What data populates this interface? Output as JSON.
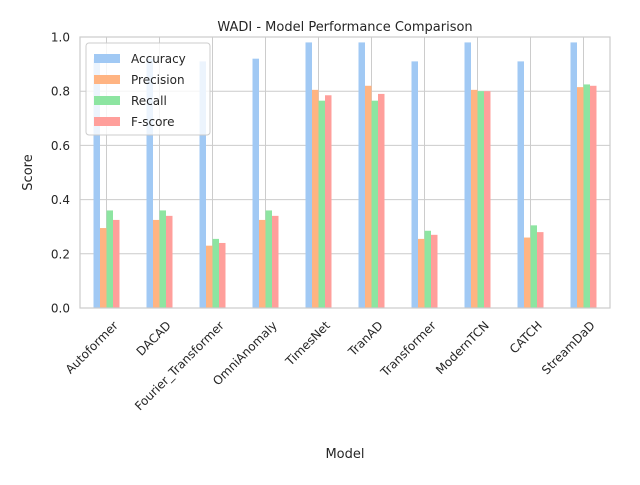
{
  "chart_data": {
    "type": "bar",
    "title": "WADI - Model Performance Comparison",
    "xlabel": "Model",
    "ylabel": "Score",
    "ylim": [
      0,
      1.0
    ],
    "yticks": [
      "0.0",
      "0.2",
      "0.4",
      "0.6",
      "0.8",
      "1.0"
    ],
    "grid": true,
    "legend_position": "upper-left",
    "categories": [
      "Autoformer",
      "DACAD",
      "Fourier_Transformer",
      "OmniAnomaly",
      "TimesNet",
      "TranAD",
      "Transformer",
      "ModernTCN",
      "CATCH",
      "StreamDaD"
    ],
    "series": [
      {
        "name": "Accuracy",
        "color": "#a1c9f4",
        "values": [
          0.92,
          0.92,
          0.91,
          0.92,
          0.98,
          0.98,
          0.91,
          0.98,
          0.91,
          0.98
        ]
      },
      {
        "name": "Precision",
        "color": "#ffb482",
        "values": [
          0.295,
          0.325,
          0.23,
          0.325,
          0.805,
          0.82,
          0.255,
          0.805,
          0.26,
          0.815
        ]
      },
      {
        "name": "Recall",
        "color": "#8de5a1",
        "values": [
          0.36,
          0.36,
          0.255,
          0.36,
          0.765,
          0.765,
          0.285,
          0.8,
          0.305,
          0.825
        ]
      },
      {
        "name": "F-score",
        "color": "#ff9f9b",
        "values": [
          0.325,
          0.34,
          0.24,
          0.34,
          0.785,
          0.79,
          0.27,
          0.8,
          0.28,
          0.82
        ]
      }
    ]
  }
}
